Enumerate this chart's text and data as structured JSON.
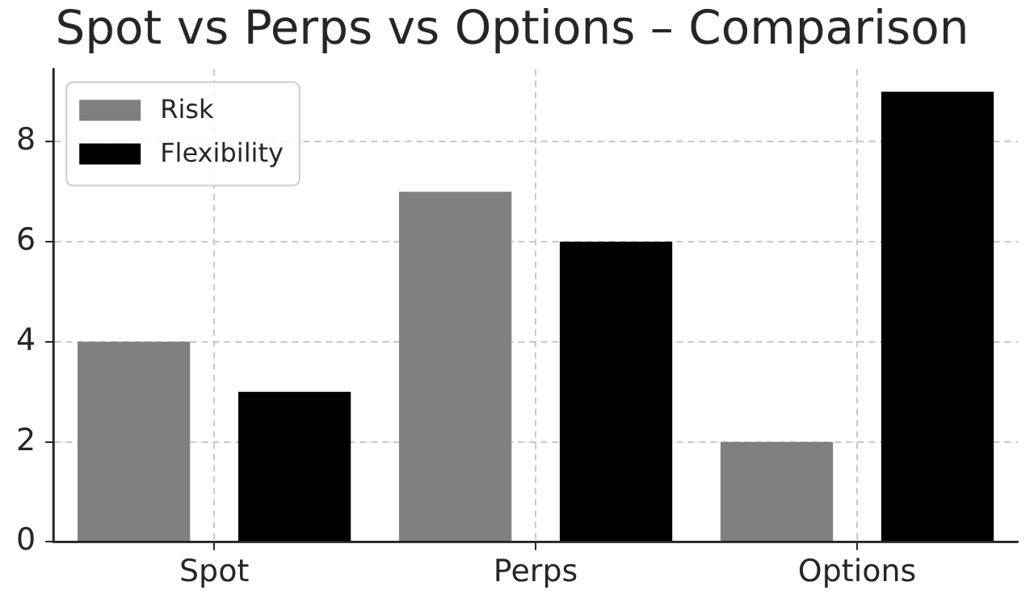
{
  "chart_data": {
    "type": "bar",
    "title": "Spot vs Perps vs Options – Comparison",
    "categories": [
      "Spot",
      "Perps",
      "Options"
    ],
    "series": [
      {
        "name": "Risk",
        "color": "#808080",
        "values": [
          4,
          7,
          2
        ]
      },
      {
        "name": "Flexibility",
        "color": "#000000",
        "values": [
          3,
          6,
          9
        ]
      }
    ],
    "ylim": [
      0,
      9.45
    ],
    "yticks": [
      0,
      2,
      4,
      6,
      8
    ],
    "grid": true,
    "legend": "top left"
  }
}
